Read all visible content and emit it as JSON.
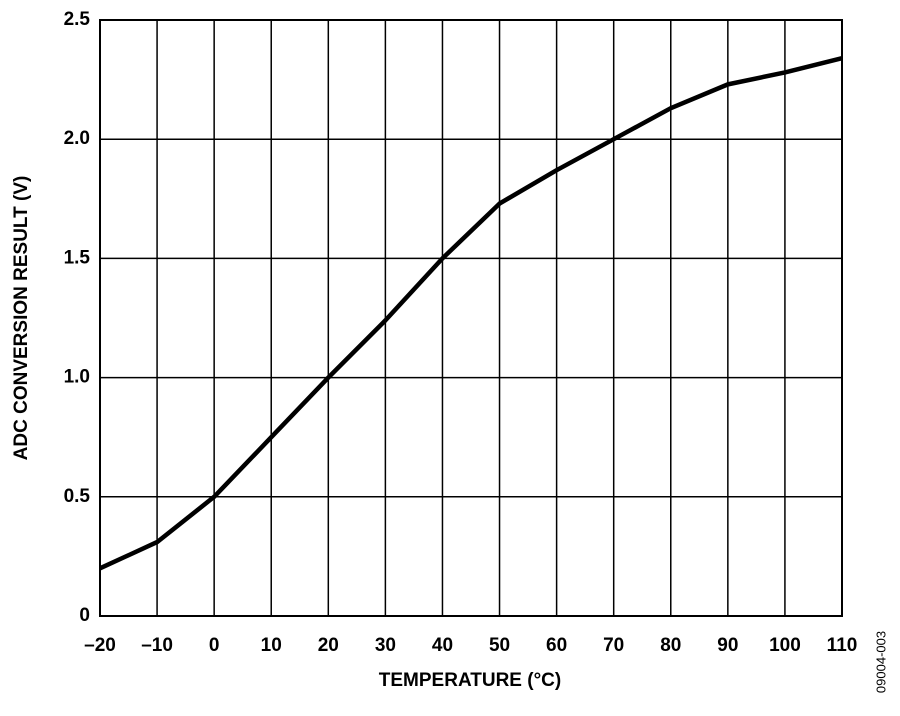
{
  "chart_data": {
    "type": "line",
    "xlabel": "TEMPERATURE (°C)",
    "ylabel": "ADC CONVERSION RESULT (V)",
    "annotation": "09004-003",
    "x": [
      -20,
      -10,
      0,
      10,
      20,
      30,
      40,
      50,
      60,
      70,
      80,
      90,
      100,
      110
    ],
    "values": [
      0.2,
      0.31,
      0.5,
      0.75,
      1.0,
      1.24,
      1.5,
      1.73,
      1.87,
      2.0,
      2.13,
      2.23,
      2.28,
      2.34
    ],
    "color": "#000000",
    "xlim": [
      -20,
      110
    ],
    "ylim": [
      0,
      2.5
    ],
    "xticks": [
      {
        "value": -20,
        "label": "–20"
      },
      {
        "value": -10,
        "label": "–10"
      },
      0,
      10,
      20,
      30,
      40,
      50,
      60,
      70,
      80,
      90,
      100,
      110
    ],
    "yticks": [
      0,
      0.5,
      {
        "value": 1,
        "label": "1.0"
      },
      1.5,
      {
        "value": 2,
        "label": "2.0"
      },
      2.5
    ],
    "grid": true
  }
}
